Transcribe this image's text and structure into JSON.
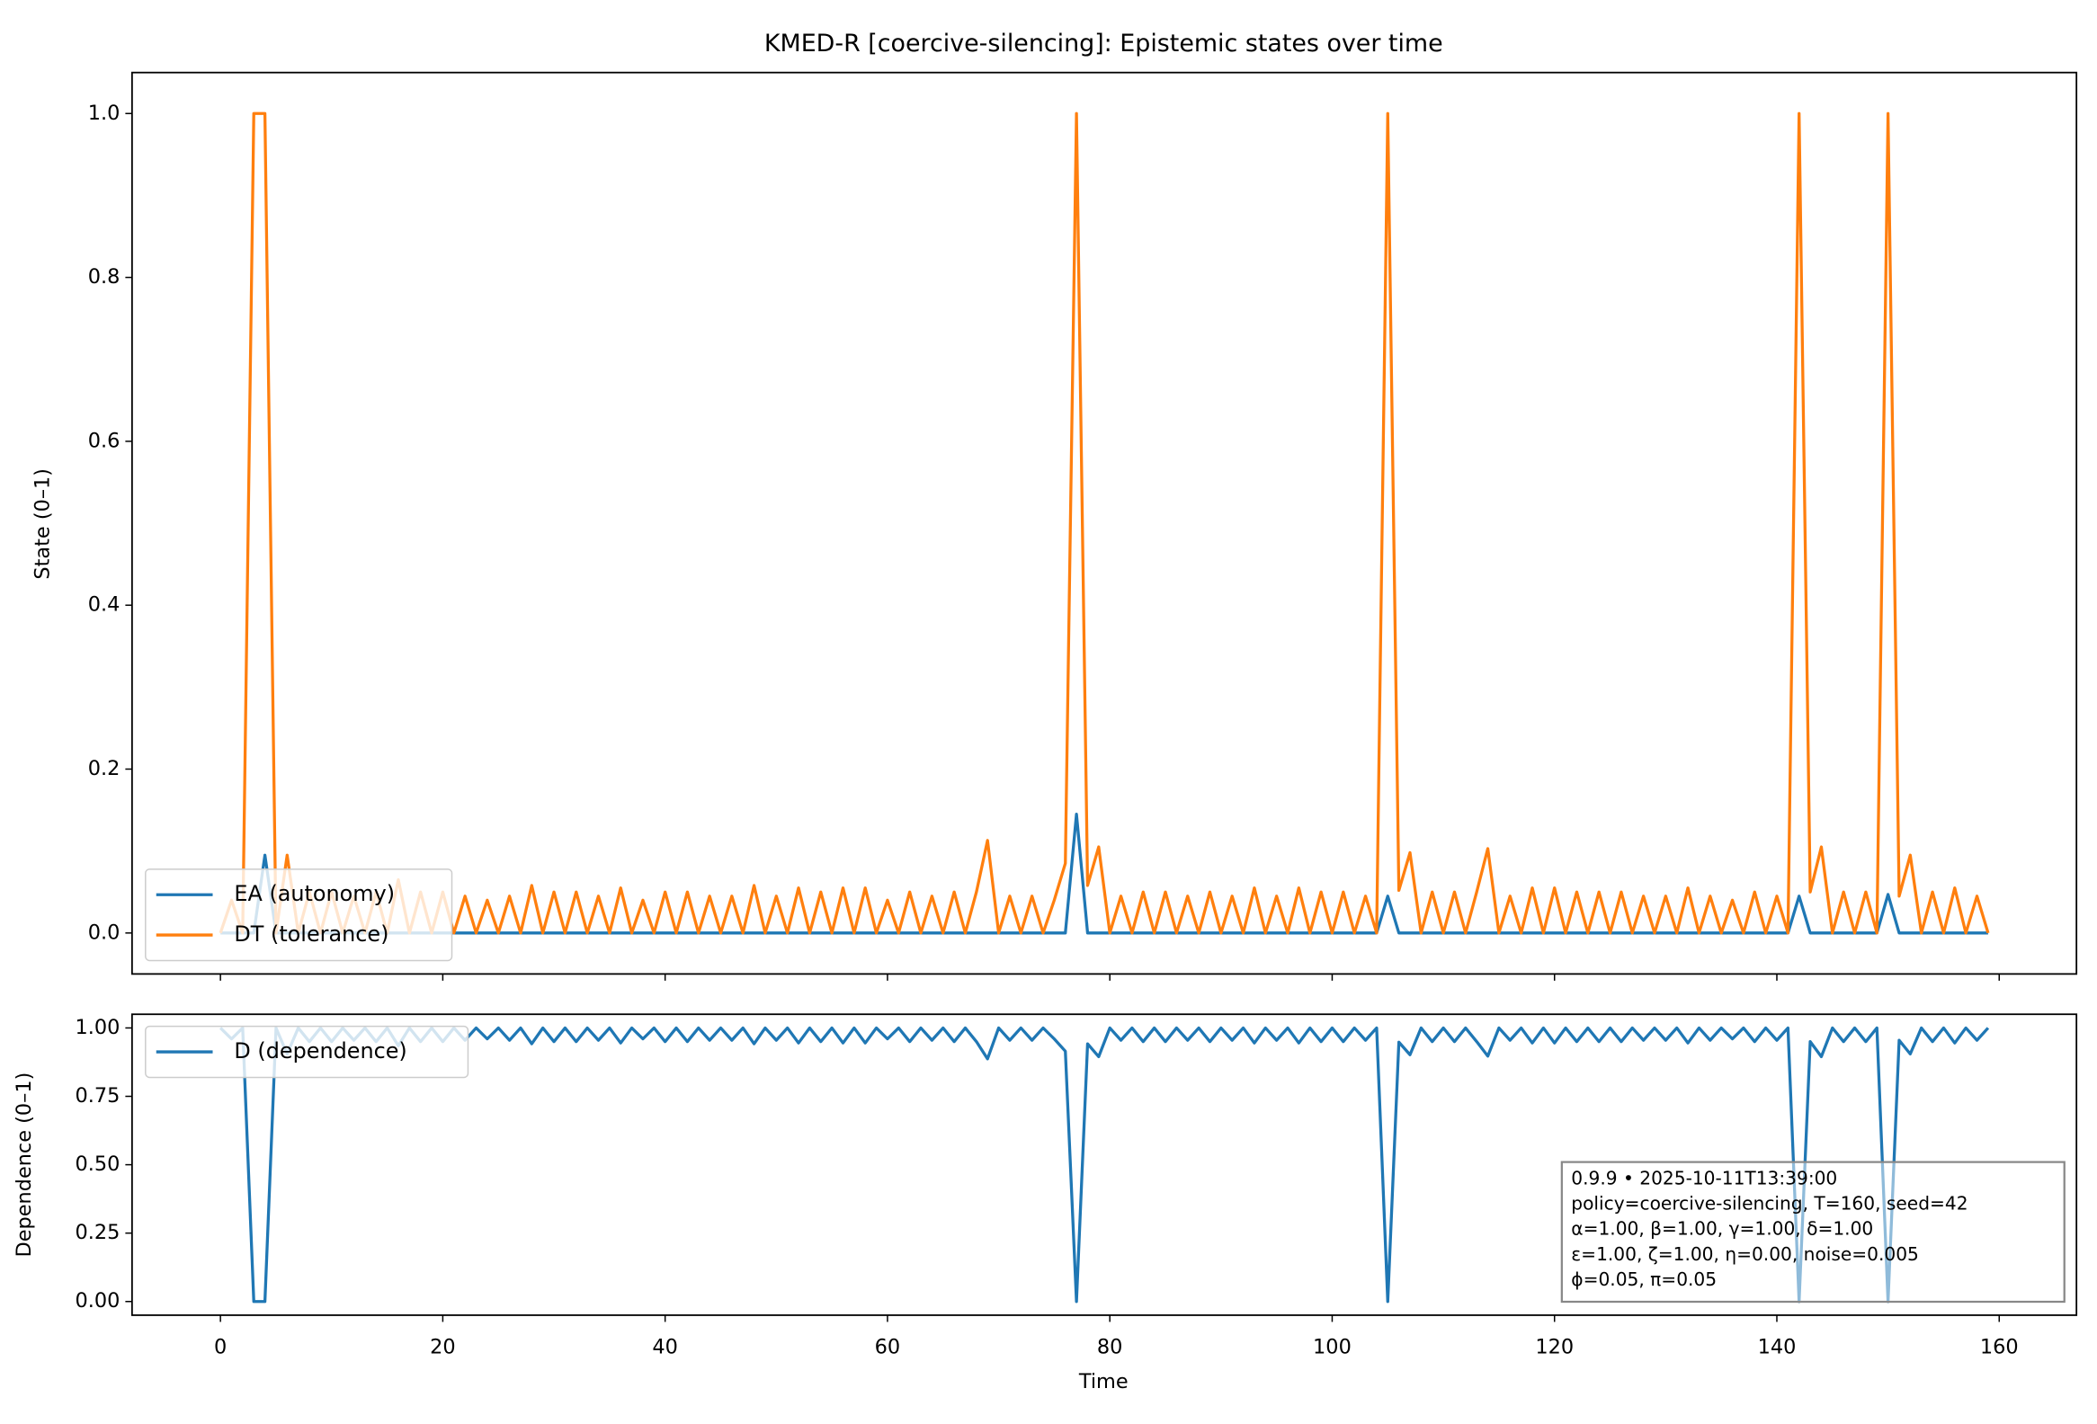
{
  "chart_data": [
    {
      "type": "line",
      "title": "KMED-R [coercive-silencing]: Epistemic states over time",
      "ylabel": "State (0–1)",
      "x": [
        0,
        1,
        2,
        3,
        4,
        5,
        6,
        7,
        8,
        9,
        10,
        11,
        12,
        13,
        14,
        15,
        16,
        17,
        18,
        19,
        20,
        21,
        22,
        23,
        24,
        25,
        26,
        27,
        28,
        29,
        30,
        31,
        32,
        33,
        34,
        35,
        36,
        37,
        38,
        39,
        40,
        41,
        42,
        43,
        44,
        45,
        46,
        47,
        48,
        49,
        50,
        51,
        52,
        53,
        54,
        55,
        56,
        57,
        58,
        59,
        60,
        61,
        62,
        63,
        64,
        65,
        66,
        67,
        68,
        69,
        70,
        71,
        72,
        73,
        74,
        75,
        76,
        77,
        78,
        79,
        80,
        81,
        82,
        83,
        84,
        85,
        86,
        87,
        88,
        89,
        90,
        91,
        92,
        93,
        94,
        95,
        96,
        97,
        98,
        99,
        100,
        101,
        102,
        103,
        104,
        105,
        106,
        107,
        108,
        109,
        110,
        111,
        112,
        113,
        114,
        115,
        116,
        117,
        118,
        119,
        120,
        121,
        122,
        123,
        124,
        125,
        126,
        127,
        128,
        129,
        130,
        131,
        132,
        133,
        134,
        135,
        136,
        137,
        138,
        139,
        140,
        141,
        142,
        143,
        144,
        145,
        146,
        147,
        148,
        149,
        150,
        151,
        152,
        153,
        154,
        155,
        156,
        157,
        158,
        159
      ],
      "xlim": [
        -7.95,
        166.95
      ],
      "ylim": [
        -0.05,
        1.05
      ],
      "yticks": [
        {
          "value": 0,
          "label": "0.0"
        },
        {
          "value": 0.2,
          "label": "0.2"
        },
        {
          "value": 0.4,
          "label": "0.4"
        },
        {
          "value": 0.6,
          "label": "0.6"
        },
        {
          "value": 0.8,
          "label": "0.8"
        },
        {
          "value": 1,
          "label": "1.0"
        }
      ],
      "legend": "lower left",
      "series": [
        {
          "name": "EA (autonomy)",
          "color": "#1f77b4",
          "values": [
            0,
            0,
            0,
            0,
            0.095,
            0,
            0,
            0,
            0,
            0,
            0,
            0,
            0,
            0,
            0,
            0,
            0,
            0,
            0,
            0,
            0,
            0,
            0,
            0,
            0,
            0,
            0,
            0,
            0,
            0,
            0,
            0,
            0,
            0,
            0,
            0,
            0,
            0,
            0,
            0,
            0,
            0,
            0,
            0,
            0,
            0,
            0,
            0,
            0,
            0,
            0,
            0,
            0,
            0,
            0,
            0,
            0,
            0,
            0,
            0,
            0,
            0,
            0,
            0,
            0,
            0,
            0,
            0,
            0,
            0,
            0,
            0,
            0,
            0,
            0,
            0,
            0,
            0.145,
            0,
            0,
            0,
            0,
            0,
            0,
            0,
            0,
            0,
            0,
            0,
            0,
            0,
            0,
            0,
            0,
            0,
            0,
            0,
            0,
            0,
            0,
            0,
            0,
            0,
            0,
            0,
            0.045,
            0,
            0,
            0,
            0,
            0,
            0,
            0,
            0,
            0,
            0,
            0,
            0,
            0,
            0,
            0,
            0,
            0,
            0,
            0,
            0,
            0,
            0,
            0,
            0,
            0,
            0,
            0,
            0,
            0,
            0,
            0,
            0,
            0,
            0,
            0,
            0,
            0.045,
            0,
            0,
            0,
            0,
            0,
            0,
            0,
            0.047,
            0,
            0,
            0,
            0,
            0,
            0,
            0,
            0,
            0
          ]
        },
        {
          "name": "DT (tolerance)",
          "color": "#ff7f0e",
          "values": [
            0,
            0.04,
            0,
            1,
            1,
            0,
            0.095,
            0,
            0.05,
            0,
            0.05,
            0,
            0.045,
            0,
            0.05,
            0,
            0.065,
            0,
            0.05,
            0,
            0.05,
            0,
            0.045,
            0,
            0.04,
            0,
            0.045,
            0,
            0.058,
            0,
            0.05,
            0,
            0.05,
            0,
            0.045,
            0,
            0.055,
            0,
            0.04,
            0,
            0.05,
            0,
            0.05,
            0,
            0.045,
            0,
            0.045,
            0,
            0.058,
            0,
            0.045,
            0,
            0.055,
            0,
            0.05,
            0,
            0.055,
            0,
            0.055,
            0,
            0.04,
            0,
            0.05,
            0,
            0.045,
            0,
            0.05,
            0,
            0.05,
            0.113,
            0,
            0.045,
            0,
            0.045,
            0,
            0.04,
            0.085,
            1,
            0.058,
            0.105,
            0,
            0.045,
            0,
            0.05,
            0,
            0.05,
            0,
            0.045,
            0,
            0.05,
            0,
            0.045,
            0,
            0.055,
            0,
            0.045,
            0,
            0.055,
            0,
            0.05,
            0,
            0.05,
            0,
            0.045,
            0,
            1,
            0.052,
            0.098,
            0,
            0.05,
            0,
            0.05,
            0,
            0.05,
            0.103,
            0,
            0.045,
            0,
            0.055,
            0,
            0.055,
            0,
            0.05,
            0,
            0.05,
            0,
            0.05,
            0,
            0.045,
            0,
            0.045,
            0,
            0.055,
            0,
            0.045,
            0,
            0.04,
            0,
            0.05,
            0,
            0.045,
            0,
            1,
            0.05,
            0.105,
            0,
            0.05,
            0,
            0.05,
            0,
            1,
            0.045,
            0.095,
            0,
            0.05,
            0,
            0.055,
            0,
            0.045,
            0
          ]
        }
      ]
    },
    {
      "type": "line",
      "xlabel": "Time",
      "ylabel": "Dependence (0–1)",
      "x": [
        0,
        1,
        2,
        3,
        4,
        5,
        6,
        7,
        8,
        9,
        10,
        11,
        12,
        13,
        14,
        15,
        16,
        17,
        18,
        19,
        20,
        21,
        22,
        23,
        24,
        25,
        26,
        27,
        28,
        29,
        30,
        31,
        32,
        33,
        34,
        35,
        36,
        37,
        38,
        39,
        40,
        41,
        42,
        43,
        44,
        45,
        46,
        47,
        48,
        49,
        50,
        51,
        52,
        53,
        54,
        55,
        56,
        57,
        58,
        59,
        60,
        61,
        62,
        63,
        64,
        65,
        66,
        67,
        68,
        69,
        70,
        71,
        72,
        73,
        74,
        75,
        76,
        77,
        78,
        79,
        80,
        81,
        82,
        83,
        84,
        85,
        86,
        87,
        88,
        89,
        90,
        91,
        92,
        93,
        94,
        95,
        96,
        97,
        98,
        99,
        100,
        101,
        102,
        103,
        104,
        105,
        106,
        107,
        108,
        109,
        110,
        111,
        112,
        113,
        114,
        115,
        116,
        117,
        118,
        119,
        120,
        121,
        122,
        123,
        124,
        125,
        126,
        127,
        128,
        129,
        130,
        131,
        132,
        133,
        134,
        135,
        136,
        137,
        138,
        139,
        140,
        141,
        142,
        143,
        144,
        145,
        146,
        147,
        148,
        149,
        150,
        151,
        152,
        153,
        154,
        155,
        156,
        157,
        158,
        159
      ],
      "xlim": [
        -7.95,
        166.95
      ],
      "xticks": [
        0,
        20,
        40,
        60,
        80,
        100,
        120,
        140,
        160
      ],
      "ylim": [
        -0.05,
        1.05
      ],
      "yticks": [
        {
          "value": 0,
          "label": "0.00"
        },
        {
          "value": 0.25,
          "label": "0.25"
        },
        {
          "value": 0.5,
          "label": "0.50"
        },
        {
          "value": 0.75,
          "label": "0.75"
        },
        {
          "value": 1,
          "label": "1.00"
        }
      ],
      "legend": "upper left",
      "series": [
        {
          "name": "D (dependence)",
          "color": "#1f77b4",
          "values": [
            1,
            0.96,
            1,
            0,
            0,
            1,
            0.905,
            1,
            0.95,
            1,
            0.95,
            1,
            0.955,
            1,
            0.95,
            1,
            0.935,
            1,
            0.95,
            1,
            0.95,
            1,
            0.955,
            1,
            0.96,
            1,
            0.955,
            1,
            0.942,
            1,
            0.95,
            1,
            0.95,
            1,
            0.955,
            1,
            0.945,
            1,
            0.96,
            1,
            0.95,
            1,
            0.95,
            1,
            0.955,
            1,
            0.955,
            1,
            0.942,
            1,
            0.955,
            1,
            0.945,
            1,
            0.95,
            1,
            0.945,
            1,
            0.945,
            1,
            0.96,
            1,
            0.95,
            1,
            0.955,
            1,
            0.95,
            1,
            0.95,
            0.887,
            1,
            0.955,
            1,
            0.955,
            1,
            0.96,
            0.915,
            0,
            0.942,
            0.895,
            1,
            0.955,
            1,
            0.95,
            1,
            0.95,
            1,
            0.955,
            1,
            0.95,
            1,
            0.955,
            1,
            0.945,
            1,
            0.955,
            1,
            0.945,
            1,
            0.95,
            1,
            0.95,
            1,
            0.955,
            1,
            0,
            0.948,
            0.902,
            1,
            0.95,
            1,
            0.95,
            1,
            0.95,
            0.897,
            1,
            0.955,
            1,
            0.945,
            1,
            0.945,
            1,
            0.95,
            1,
            0.95,
            1,
            0.95,
            1,
            0.955,
            1,
            0.955,
            1,
            0.945,
            1,
            0.955,
            1,
            0.96,
            1,
            0.95,
            1,
            0.955,
            1,
            0,
            0.95,
            0.895,
            1,
            0.95,
            1,
            0.95,
            1,
            0,
            0.955,
            0.905,
            1,
            0.95,
            1,
            0.945,
            1,
            0.955,
            1
          ]
        }
      ],
      "annotation": [
        "0.9.9  •  2025-10-11T13:39:00",
        "policy=coercive-silencing, T=160, seed=42",
        "α=1.00, β=1.00, γ=1.00, δ=1.00",
        "ε=1.00, ζ=1.00, η=0.00, noise=0.005",
        "ϕ=0.05, π=0.05"
      ]
    }
  ]
}
